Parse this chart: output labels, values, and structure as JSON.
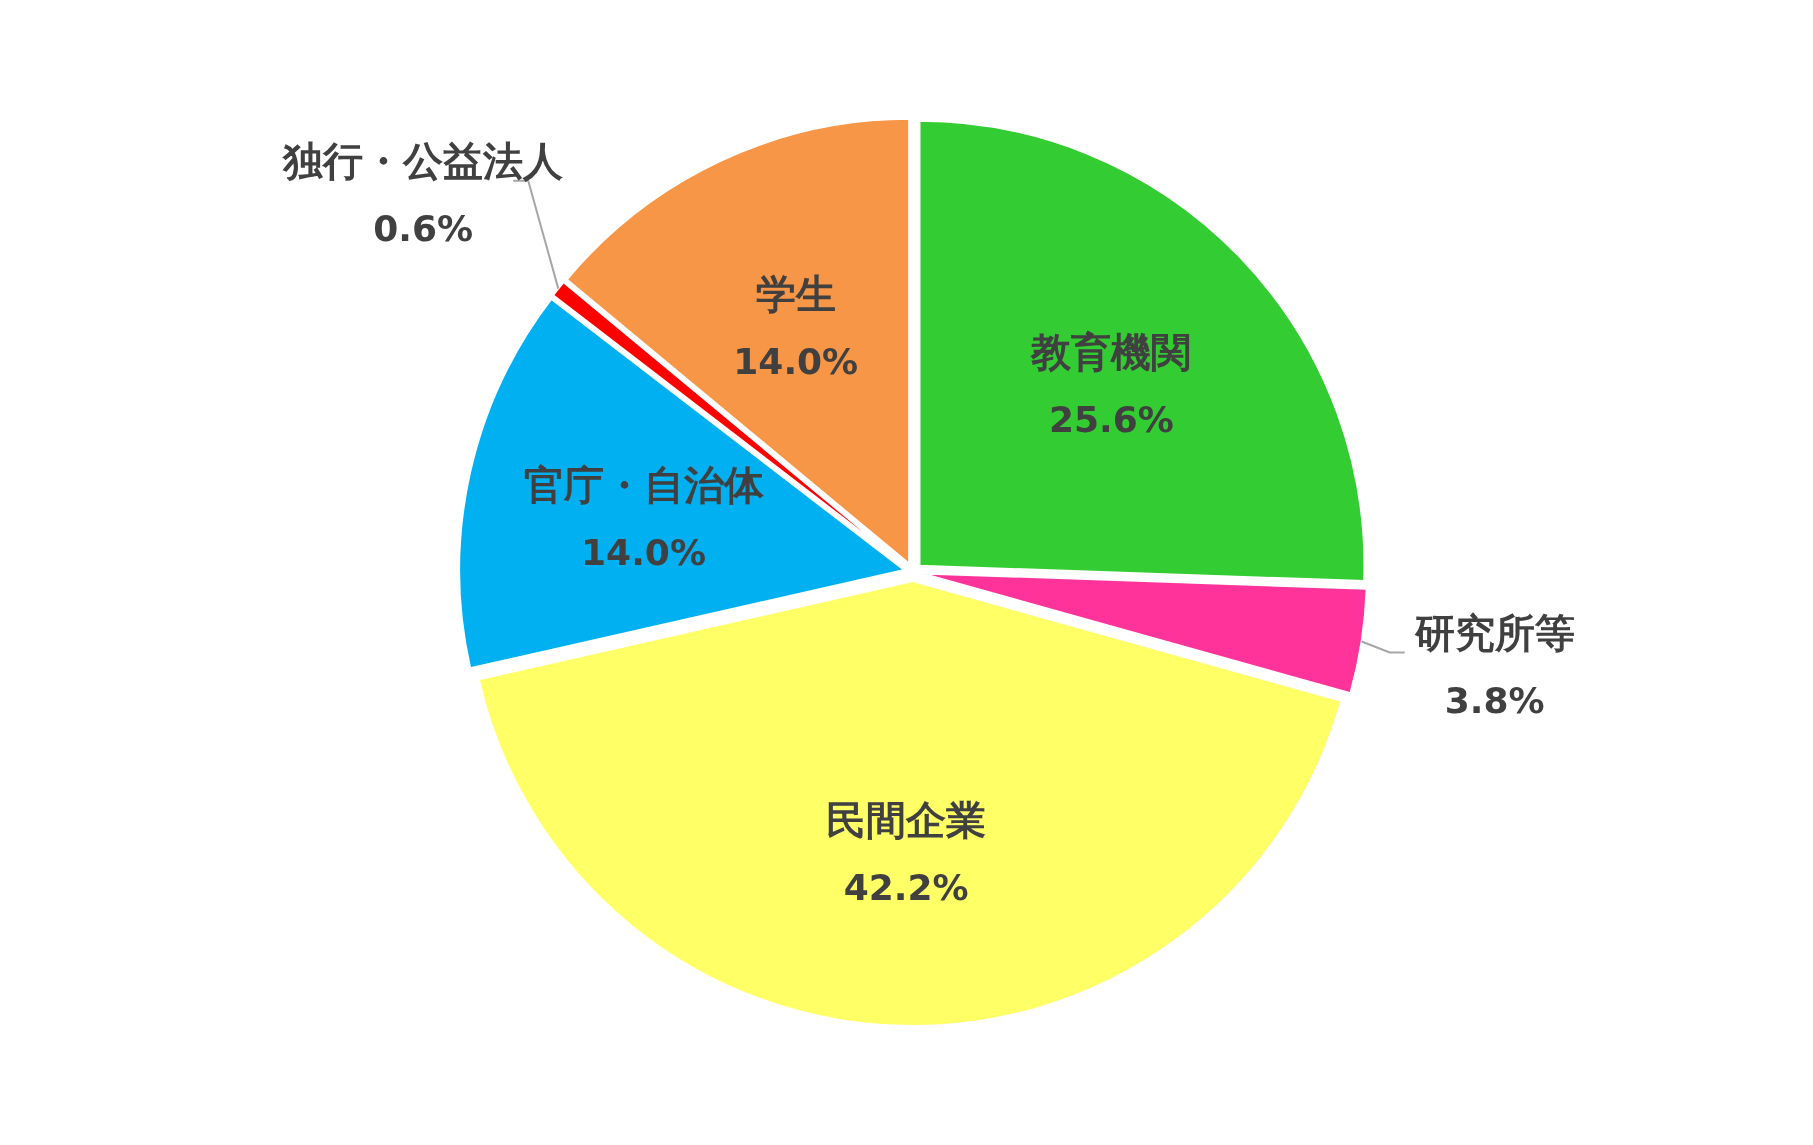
{
  "chart_data": {
    "type": "pie",
    "categories": [
      "教育機関",
      "研究所等",
      "民間企業",
      "官庁・自治体",
      "独行・公益法人",
      "学生"
    ],
    "values": [
      25.6,
      3.8,
      42.2,
      14.0,
      0.6,
      14.0
    ],
    "value_labels": [
      "25.6%",
      "3.8%",
      "42.2%",
      "14.0%",
      "0.6%",
      "14.0%"
    ],
    "colors": [
      "#33cc33",
      "#ff3399",
      "#ffff66",
      "#00b0f0",
      "#ff0000",
      "#f79646"
    ]
  }
}
